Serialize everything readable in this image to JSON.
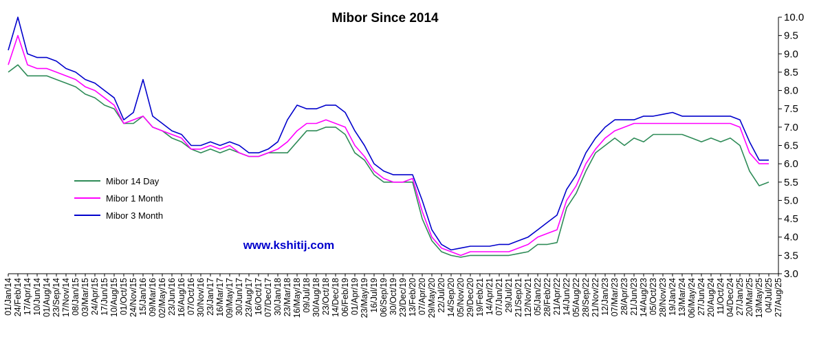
{
  "chart_data": {
    "type": "line",
    "title": "Mibor  Since  2014",
    "watermark": "www.kshitij.com",
    "watermark_color": "#0000cc",
    "ylim": [
      3.0,
      10.0
    ],
    "y_ticks": [
      "10.0",
      "9.5",
      "9.0",
      "8.5",
      "8.0",
      "7.5",
      "7.0",
      "6.5",
      "6.0",
      "5.5",
      "5.0",
      "4.5",
      "4.0",
      "3.5",
      "3.0"
    ],
    "y_tick_values": [
      10.0,
      9.5,
      9.0,
      8.5,
      8.0,
      7.5,
      7.0,
      6.5,
      6.0,
      5.5,
      5.0,
      4.5,
      4.0,
      3.5,
      3.0
    ],
    "x_ticks": [
      "01/Jan/14",
      "24/Feb/14",
      "17/Apr/14",
      "10/Jun/14",
      "01/Aug/14",
      "23/Sep/14",
      "17/Nov/14",
      "08/Jan/15",
      "03/Mar/15",
      "24/Apr/15",
      "17/Jun/15",
      "10/Aug/15",
      "01/Oct/15",
      "24/Nov/15",
      "15/Jan/16",
      "09/Mar/16",
      "02/May/16",
      "23/Jun/16",
      "16/Aug/16",
      "07/Oct/16",
      "30/Nov/16",
      "23/Jan/17",
      "16/Mar/17",
      "09/May/17",
      "30/Jun/17",
      "23/Aug/17",
      "16/Oct/17",
      "07/Dec/17",
      "30/Jan/18",
      "23/Mar/18",
      "16/May/18",
      "09/Jul/18",
      "30/Aug/18",
      "23/Oct/18",
      "14/Dec/18",
      "06/Feb/19",
      "01/Apr/19",
      "23/May/19",
      "16/Jul/19",
      "06/Sep/19",
      "30/Oct/19",
      "23/Dec/19",
      "13/Feb/20",
      "07/Apr/20",
      "29/May/20",
      "22/Jul/20",
      "14/Sep/20",
      "05/Nov/20",
      "29/Dec/20",
      "19/Feb/21",
      "14/Apr/21",
      "07/Jun/21",
      "29/Jul/21",
      "21/Sep/21",
      "12/Nov/21",
      "05/Jan/22",
      "28/Feb/22",
      "21/Apr/22",
      "14/Jun/22",
      "05/Aug/22",
      "28/Sep/22",
      "21/Nov/22",
      "12/Jan/23",
      "07/Mar/23",
      "28/Apr/23",
      "21/Jun/23",
      "14/Aug/23",
      "05/Oct/23",
      "28/Nov/23",
      "19/Jan/24",
      "13/Mar/24",
      "06/May/24",
      "27/Jun/24",
      "20/Aug/24",
      "11/Oct/24",
      "04/Dec/24",
      "27/Jan/25",
      "20/Mar/25",
      "13/May/25",
      "04/Jul/25",
      "27/Aug/25"
    ],
    "x_index_range": [
      0,
      80
    ],
    "grid": false,
    "legend_position": "left-middle",
    "series": [
      {
        "name": "Mibor 14 Day",
        "color": "#2e8b57",
        "x": [
          0,
          1,
          2,
          3,
          4,
          5,
          6,
          7,
          8,
          9,
          10,
          11,
          12,
          13,
          14,
          15,
          16,
          17,
          18,
          19,
          20,
          21,
          22,
          23,
          24,
          25,
          26,
          27,
          28,
          29,
          30,
          31,
          32,
          33,
          34,
          35,
          36,
          37,
          38,
          39,
          40,
          41,
          42,
          43,
          44,
          45,
          46,
          47,
          48,
          49,
          50,
          51,
          52,
          53,
          54,
          55,
          56,
          57,
          58,
          59,
          60,
          61,
          62,
          63,
          64,
          65,
          66,
          67,
          68,
          69,
          70,
          71,
          72,
          73,
          74,
          75,
          76,
          77,
          78,
          79
        ],
        "values": [
          8.5,
          8.7,
          8.4,
          8.4,
          8.4,
          8.3,
          8.2,
          8.1,
          7.9,
          7.8,
          7.6,
          7.5,
          7.1,
          7.1,
          7.3,
          7.0,
          6.9,
          6.7,
          6.6,
          6.4,
          6.3,
          6.4,
          6.3,
          6.4,
          6.3,
          6.2,
          6.2,
          6.3,
          6.3,
          6.3,
          6.6,
          6.9,
          6.9,
          7.0,
          7.0,
          6.8,
          6.3,
          6.1,
          5.7,
          5.5,
          5.5,
          5.5,
          5.5,
          4.5,
          3.9,
          3.6,
          3.5,
          3.45,
          3.5,
          3.5,
          3.5,
          3.5,
          3.5,
          3.55,
          3.6,
          3.8,
          3.8,
          3.85,
          4.8,
          5.2,
          5.8,
          6.3,
          6.5,
          6.7,
          6.5,
          6.7,
          6.6,
          6.8,
          6.8,
          6.8,
          6.8,
          6.7,
          6.6,
          6.7,
          6.6,
          6.7,
          6.5,
          5.8,
          5.4,
          5.5
        ]
      },
      {
        "name": "Mibor 1 Month",
        "color": "#ff00ff",
        "x": [
          0,
          1,
          2,
          3,
          4,
          5,
          6,
          7,
          8,
          9,
          10,
          11,
          12,
          13,
          14,
          15,
          16,
          17,
          18,
          19,
          20,
          21,
          22,
          23,
          24,
          25,
          26,
          27,
          28,
          29,
          30,
          31,
          32,
          33,
          34,
          35,
          36,
          37,
          38,
          39,
          40,
          41,
          42,
          43,
          44,
          45,
          46,
          47,
          48,
          49,
          50,
          51,
          52,
          53,
          54,
          55,
          56,
          57,
          58,
          59,
          60,
          61,
          62,
          63,
          64,
          65,
          66,
          67,
          68,
          69,
          70,
          71,
          72,
          73,
          74,
          75,
          76,
          77,
          78,
          79
        ],
        "values": [
          8.7,
          9.5,
          8.7,
          8.6,
          8.6,
          8.5,
          8.4,
          8.3,
          8.1,
          8.0,
          7.8,
          7.6,
          7.1,
          7.2,
          7.3,
          7.0,
          6.9,
          6.8,
          6.7,
          6.4,
          6.4,
          6.5,
          6.4,
          6.5,
          6.3,
          6.2,
          6.2,
          6.3,
          6.4,
          6.6,
          6.9,
          7.1,
          7.1,
          7.2,
          7.1,
          7.0,
          6.5,
          6.2,
          5.8,
          5.6,
          5.5,
          5.5,
          5.6,
          4.7,
          4.0,
          3.7,
          3.6,
          3.5,
          3.6,
          3.6,
          3.6,
          3.6,
          3.6,
          3.7,
          3.8,
          4.0,
          4.1,
          4.2,
          5.0,
          5.4,
          6.0,
          6.4,
          6.7,
          6.9,
          7.0,
          7.1,
          7.1,
          7.1,
          7.1,
          7.1,
          7.1,
          7.1,
          7.1,
          7.1,
          7.1,
          7.1,
          7.0,
          6.3,
          6.0,
          6.0
        ]
      },
      {
        "name": "Mibor 3 Month",
        "color": "#0000cc",
        "x": [
          0,
          1,
          2,
          3,
          4,
          5,
          6,
          7,
          8,
          9,
          10,
          11,
          12,
          13,
          14,
          15,
          16,
          17,
          18,
          19,
          20,
          21,
          22,
          23,
          24,
          25,
          26,
          27,
          28,
          29,
          30,
          31,
          32,
          33,
          34,
          35,
          36,
          37,
          38,
          39,
          40,
          41,
          42,
          43,
          44,
          45,
          46,
          47,
          48,
          49,
          50,
          51,
          52,
          53,
          54,
          55,
          56,
          57,
          58,
          59,
          60,
          61,
          62,
          63,
          64,
          65,
          66,
          67,
          68,
          69,
          70,
          71,
          72,
          73,
          74,
          75,
          76,
          77,
          78,
          79
        ],
        "values": [
          9.1,
          10.0,
          9.0,
          8.9,
          8.9,
          8.8,
          8.6,
          8.5,
          8.3,
          8.2,
          8.0,
          7.8,
          7.2,
          7.4,
          8.3,
          7.3,
          7.1,
          6.9,
          6.8,
          6.5,
          6.5,
          6.6,
          6.5,
          6.6,
          6.5,
          6.3,
          6.3,
          6.4,
          6.6,
          7.2,
          7.6,
          7.5,
          7.5,
          7.6,
          7.6,
          7.4,
          6.9,
          6.5,
          6.0,
          5.8,
          5.7,
          5.7,
          5.7,
          5.0,
          4.2,
          3.8,
          3.65,
          3.7,
          3.75,
          3.75,
          3.75,
          3.8,
          3.8,
          3.9,
          4.0,
          4.2,
          4.4,
          4.6,
          5.3,
          5.7,
          6.3,
          6.7,
          7.0,
          7.2,
          7.2,
          7.2,
          7.3,
          7.3,
          7.35,
          7.4,
          7.3,
          7.3,
          7.3,
          7.3,
          7.3,
          7.3,
          7.2,
          6.6,
          6.1,
          6.1
        ]
      }
    ]
  }
}
